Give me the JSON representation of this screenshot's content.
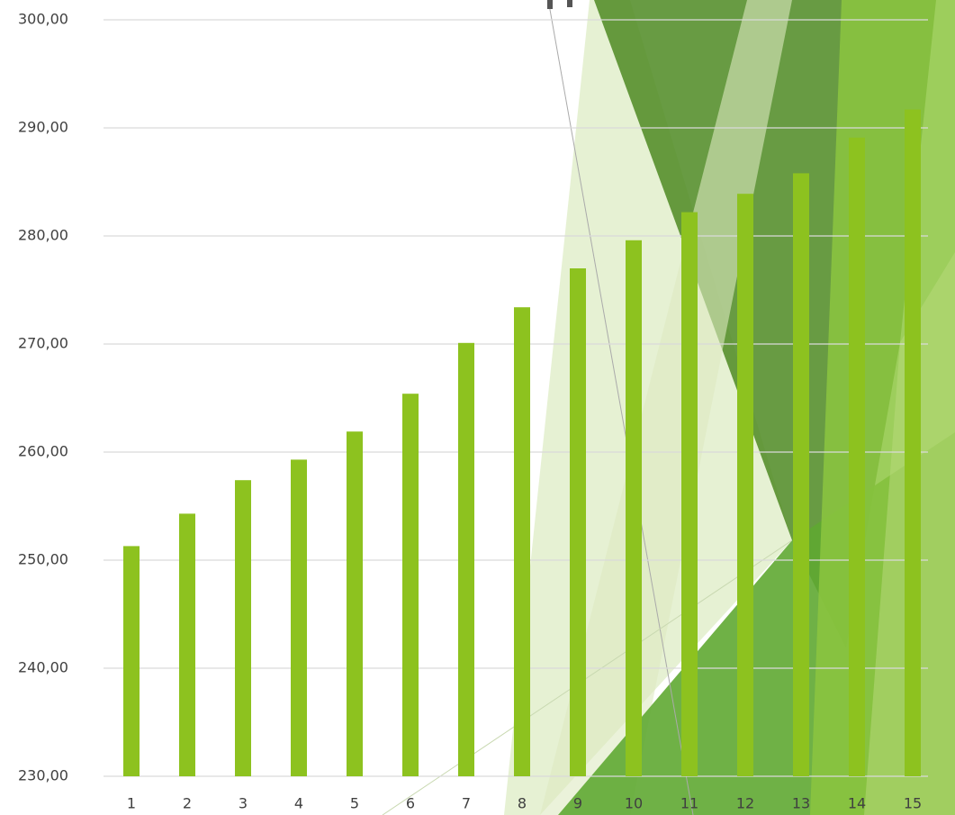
{
  "chart_data": {
    "type": "bar",
    "categories": [
      "1",
      "2",
      "3",
      "4",
      "5",
      "6",
      "7",
      "8",
      "9",
      "10",
      "11",
      "12",
      "13",
      "14",
      "15"
    ],
    "values": [
      251.3,
      254.3,
      257.4,
      259.3,
      261.9,
      265.4,
      270.1,
      273.4,
      277.0,
      279.6,
      282.2,
      283.9,
      285.8,
      289.1,
      291.7
    ],
    "color": "#8dc21f",
    "ylim": [
      230,
      300
    ],
    "yticks": [
      {
        "value": 230,
        "label": "230,00"
      },
      {
        "value": 240,
        "label": "240,00"
      },
      {
        "value": 250,
        "label": "250,00"
      },
      {
        "value": 260,
        "label": "260,00"
      },
      {
        "value": 270,
        "label": "270,00"
      },
      {
        "value": 280,
        "label": "280,00"
      },
      {
        "value": 290,
        "label": "290,00"
      },
      {
        "value": 300,
        "label": "300,00"
      }
    ],
    "grid": true
  }
}
